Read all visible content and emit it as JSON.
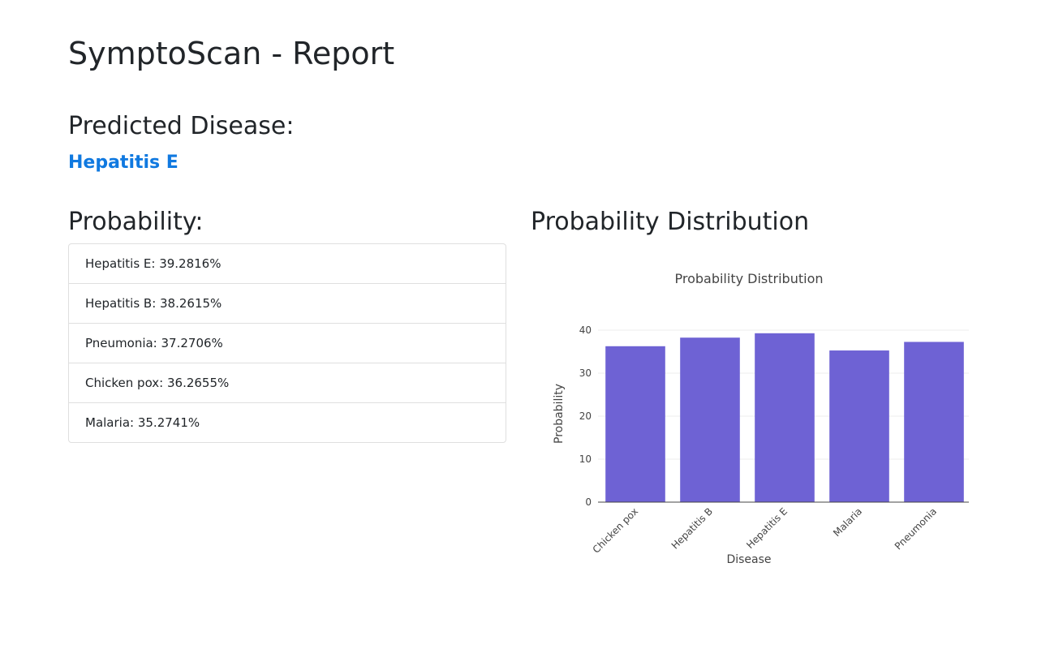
{
  "page": {
    "title": "SymptoScan - Report",
    "predicted_heading": "Predicted Disease:",
    "predicted_disease": "Hepatitis E",
    "probability_heading": "Probability:",
    "distribution_heading": "Probability Distribution"
  },
  "colors": {
    "accent": "#1079e0",
    "bar": "#6e62d4",
    "text": "#212529"
  },
  "probabilities": [
    {
      "label": "Hepatitis E: 39.2816%"
    },
    {
      "label": "Hepatitis B: 38.2615%"
    },
    {
      "label": "Pneumonia: 37.2706%"
    },
    {
      "label": "Chicken pox: 36.2655%"
    },
    {
      "label": "Malaria: 35.2741%"
    }
  ],
  "chart_data": {
    "type": "bar",
    "title": "Probability Distribution",
    "xlabel": "Disease",
    "ylabel": "Probability",
    "categories": [
      "Chicken pox",
      "Hepatitis B",
      "Hepatitis E",
      "Malaria",
      "Pneumonia"
    ],
    "values": [
      36.2655,
      38.2615,
      39.2816,
      35.2741,
      37.2706
    ],
    "ylim": [
      0,
      40
    ],
    "yticks": [
      0,
      10,
      20,
      30,
      40
    ],
    "grid": true,
    "legend": "none"
  }
}
